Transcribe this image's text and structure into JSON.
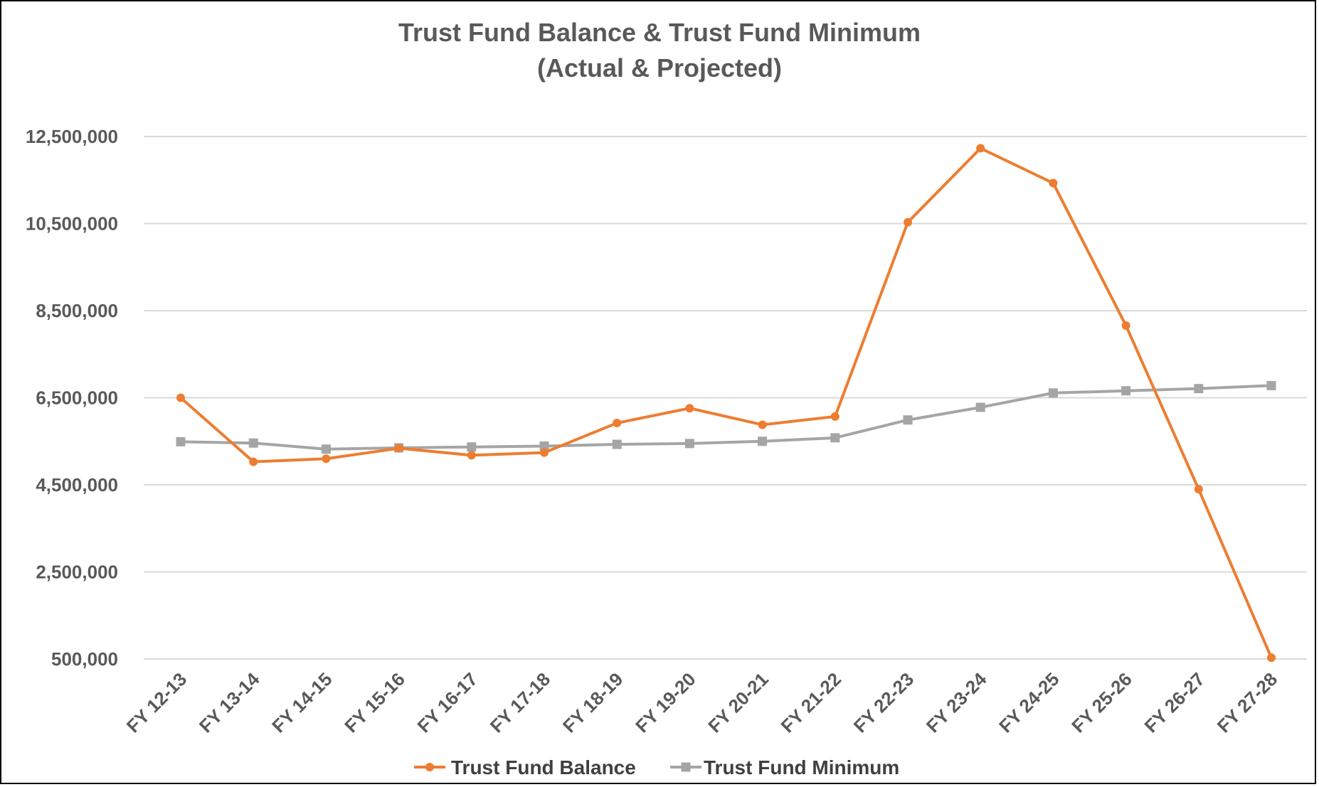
{
  "chart_data": {
    "type": "line",
    "title": "Trust Fund Balance & Trust Fund Minimum",
    "subtitle": "(Actual & Projected)",
    "xlabel": "",
    "ylabel": "",
    "categories": [
      "FY 12-13",
      "FY 13-14",
      "FY 14-15",
      "FY 15-16",
      "FY 16-17",
      "FY 17-18",
      "FY  18-19",
      "FY 19-20",
      "FY 20-21",
      "FY 21-22",
      "FY 22-23",
      "FY 23-24",
      "FY 24-25",
      "FY 25-26",
      "FY 26-27",
      "FY 27-28"
    ],
    "yticks": [
      500000,
      2500000,
      4500000,
      6500000,
      8500000,
      10500000,
      12500000
    ],
    "ytick_labels": [
      "500,000",
      "2,500,000",
      "4,500,000",
      "6,500,000",
      "8,500,000",
      "10,500,000",
      "12,500,000"
    ],
    "ylim": [
      500000,
      12500000
    ],
    "grid": true,
    "legend_position": "bottom",
    "series": [
      {
        "name": "Trust Fund Balance",
        "color": "#ED7D31",
        "marker": "circle",
        "values": [
          6500000,
          5030000,
          5100000,
          5340000,
          5180000,
          5240000,
          5920000,
          6260000,
          5880000,
          6070000,
          10530000,
          12230000,
          11430000,
          8160000,
          4400000,
          530000
        ]
      },
      {
        "name": "Trust Fund Minimum",
        "color": "#A5A5A5",
        "marker": "square",
        "values": [
          5490000,
          5460000,
          5320000,
          5350000,
          5370000,
          5390000,
          5430000,
          5450000,
          5500000,
          5580000,
          5990000,
          6280000,
          6610000,
          6660000,
          6710000,
          6780000
        ]
      }
    ]
  }
}
